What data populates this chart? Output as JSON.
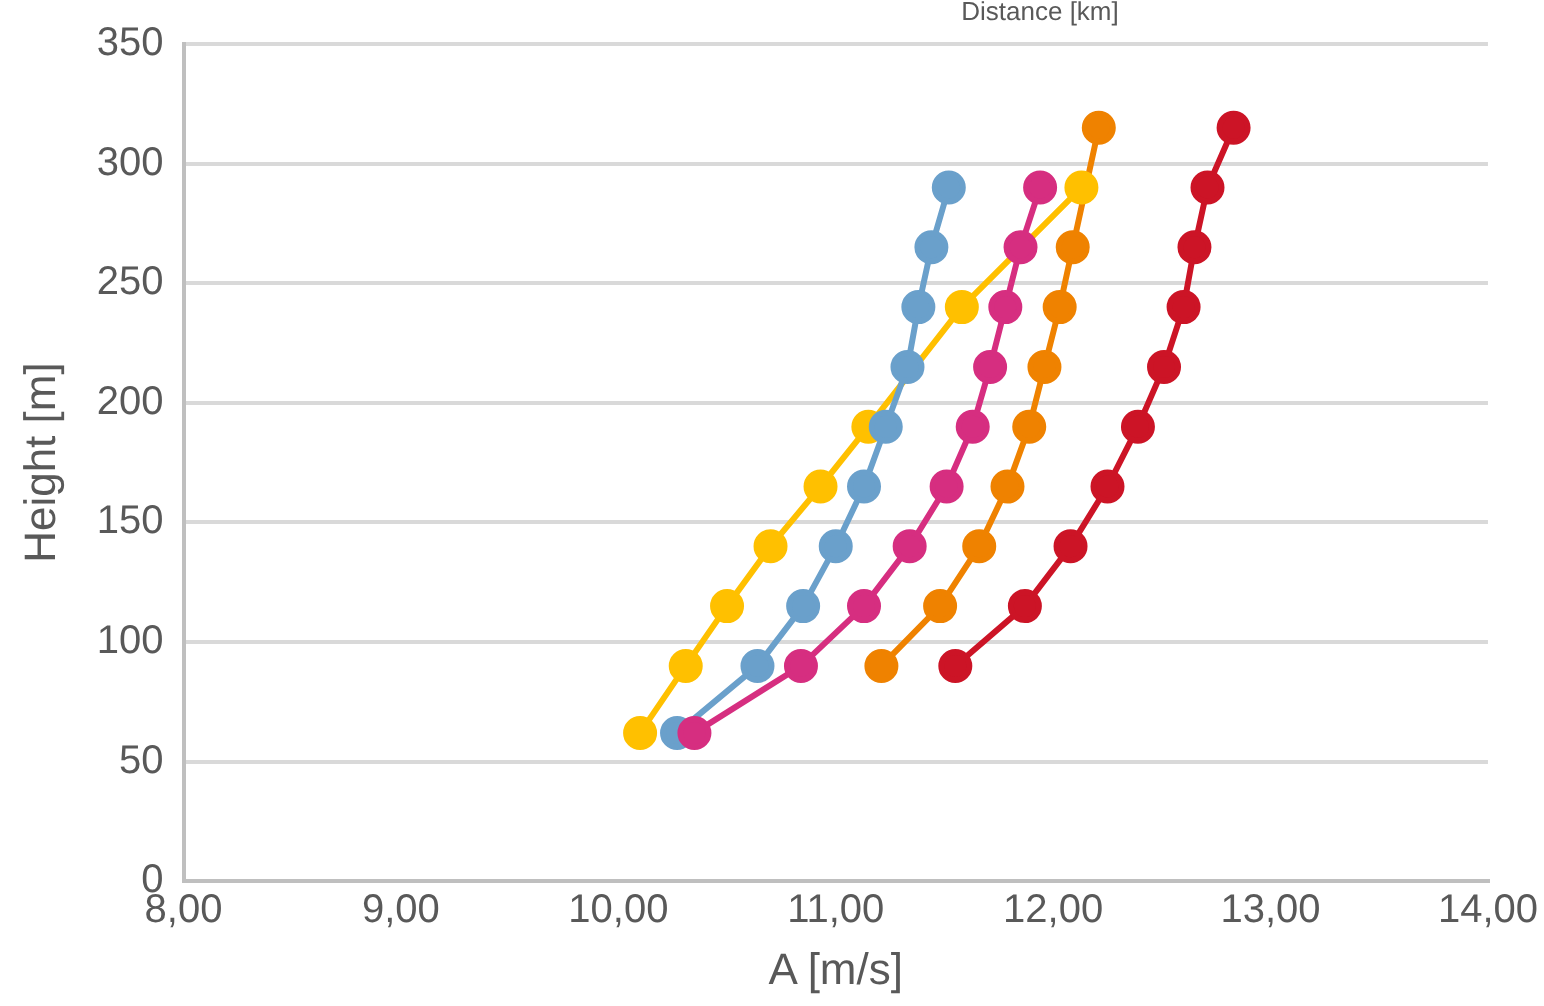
{
  "chart_data": {
    "type": "line",
    "xlabel": "A [m/s]",
    "ylabel": "Height [m]",
    "annotations": [
      "Distance [km]"
    ],
    "xlim": [
      8,
      14
    ],
    "xticks": [
      {
        "value": 8,
        "label": "8,00"
      },
      {
        "value": 9,
        "label": "9,00"
      },
      {
        "value": 10,
        "label": "10,00"
      },
      {
        "value": 11,
        "label": "11,00"
      },
      {
        "value": 12,
        "label": "12,00"
      },
      {
        "value": 13,
        "label": "13,00"
      },
      {
        "value": 14,
        "label": "14,00"
      }
    ],
    "ylim": [
      0,
      350
    ],
    "yticks": [
      0,
      50,
      100,
      150,
      200,
      250,
      300,
      350
    ],
    "grid": "y",
    "legend": false,
    "marker": "circle",
    "line_style": "solid",
    "series": [
      {
        "color": "#ef8200",
        "x": [
          11.21,
          11.48,
          11.66,
          11.79,
          11.89,
          11.96,
          12.03,
          12.09,
          12.13,
          12.21
        ],
        "values": [
          90,
          115,
          140,
          165,
          190,
          215,
          240,
          265,
          null,
          315
        ]
      },
      {
        "color": "#ffc000",
        "x": [
          10.1,
          10.31,
          10.5,
          10.7,
          10.93,
          11.15,
          11.36,
          11.58,
          11.85,
          12.13
        ],
        "values": [
          62,
          90,
          115,
          140,
          165,
          190,
          null,
          240,
          null,
          290
        ]
      },
      {
        "color": "#6aa0cb",
        "x": [
          10.27,
          10.64,
          10.85,
          11.0,
          11.13,
          11.23,
          11.33,
          11.38,
          11.44,
          11.52
        ],
        "values": [
          62,
          90,
          115,
          140,
          165,
          190,
          215,
          240,
          265,
          290
        ]
      },
      {
        "color": "#d62e80",
        "x": [
          10.35,
          10.84,
          11.13,
          11.34,
          11.51,
          11.63,
          11.71,
          11.78,
          11.85,
          11.94
        ],
        "values": [
          62,
          90,
          115,
          140,
          165,
          190,
          215,
          240,
          265,
          290
        ]
      },
      {
        "color": "#cc1426",
        "x": [
          11.55,
          11.87,
          12.08,
          12.25,
          12.39,
          12.51,
          12.6,
          12.65,
          12.71,
          12.83
        ],
        "values": [
          90,
          115,
          140,
          165,
          190,
          215,
          240,
          265,
          290,
          315
        ]
      }
    ]
  }
}
